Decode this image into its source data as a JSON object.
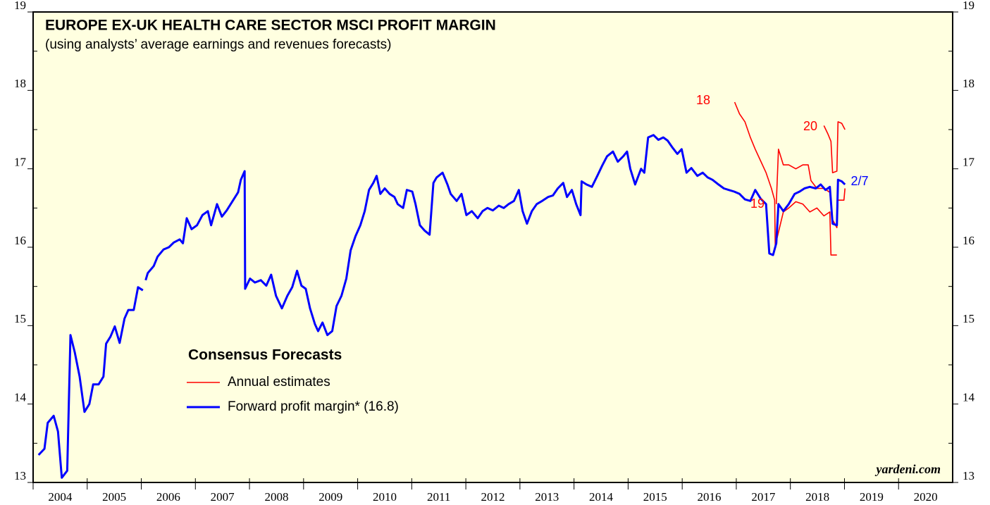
{
  "chart_data": {
    "type": "line",
    "title": "EUROPE EX-UK HEALTH CARE SECTOR MSCI PROFIT MARGIN",
    "subtitle": "(using analysts’ average earnings and revenues forecasts)",
    "legend_title": "Consensus Forecasts",
    "source": "yardeni.com",
    "annotations": [
      "18",
      "19",
      "20",
      "2/7"
    ],
    "xlim": [
      2004,
      2021
    ],
    "xticks": [
      2004,
      2005,
      2006,
      2007,
      2008,
      2009,
      2010,
      2011,
      2012,
      2013,
      2014,
      2015,
      2016,
      2017,
      2018,
      2019,
      2020
    ],
    "ylim": [
      13,
      19
    ],
    "yticks": [
      13,
      14,
      15,
      16,
      17,
      18,
      19
    ],
    "series": [
      {
        "name": "Forward profit margin* (16.8)",
        "color": "#0000ff",
        "x": [
          2004.1,
          2004.21,
          2004.27,
          2004.38,
          2004.46,
          2004.53,
          2004.63,
          2004.69,
          2004.77,
          2004.86,
          2004.95,
          2005.04,
          2005.11,
          2005.21,
          2005.3,
          2005.35,
          2005.43,
          2005.51,
          2005.6,
          2005.69,
          2005.76,
          2005.86,
          2005.94,
          2006.03,
          2006.05,
          2006.08,
          2006.12,
          2006.23,
          2006.3,
          2006.41,
          2006.51,
          2006.6,
          2006.71,
          2006.77,
          2006.84,
          2006.93,
          2007.03,
          2007.13,
          2007.23,
          2007.29,
          2007.4,
          2007.49,
          2007.58,
          2007.68,
          2007.79,
          2007.84,
          2007.91,
          2007.92,
          2008.01,
          2008.1,
          2008.21,
          2008.31,
          2008.4,
          2008.49,
          2008.6,
          2008.7,
          2008.79,
          2008.88,
          2008.96,
          2009.04,
          2009.12,
          2009.21,
          2009.27,
          2009.35,
          2009.44,
          2009.53,
          2009.61,
          2009.7,
          2009.79,
          2009.87,
          2009.96,
          2010.05,
          2010.13,
          2010.21,
          2010.29,
          2010.35,
          2010.42,
          2010.5,
          2010.59,
          2010.68,
          2010.74,
          2010.84,
          2010.91,
          2011.01,
          2011.07,
          2011.15,
          2011.24,
          2011.33,
          2011.4,
          2011.46,
          2011.57,
          2011.66,
          2011.72,
          2011.83,
          2011.92,
          2012.01,
          2012.11,
          2012.22,
          2012.31,
          2012.4,
          2012.5,
          2012.61,
          2012.7,
          2012.79,
          2012.89,
          2012.98,
          2013.05,
          2013.13,
          2013.22,
          2013.31,
          2013.41,
          2013.52,
          2013.61,
          2013.7,
          2013.8,
          2013.87,
          2013.96,
          2014.04,
          2014.12,
          2014.14,
          2014.23,
          2014.33,
          2014.43,
          2014.52,
          2014.61,
          2014.72,
          2014.81,
          2014.91,
          2014.98,
          2015.04,
          2015.13,
          2015.24,
          2015.3,
          2015.37,
          2015.47,
          2015.56,
          2015.65,
          2015.73,
          2015.82,
          2015.91,
          2015.99,
          2016.08,
          2016.17,
          2016.28,
          2016.38,
          2016.47,
          2016.56,
          2016.67,
          2016.77,
          2016.86,
          2016.96,
          2017.06,
          2017.16,
          2017.26,
          2017.35,
          2017.45,
          2017.55,
          2017.61,
          2017.68,
          2017.74,
          2017.78,
          2017.87,
          2017.97,
          2018.08,
          2018.17,
          2018.26,
          2018.36,
          2018.47,
          2018.56,
          2018.65,
          2018.73,
          2018.78,
          2018.86,
          2018.88,
          2018.95,
          2019.01
        ],
        "values": [
          13.35,
          13.43,
          13.76,
          13.85,
          13.65,
          13.06,
          13.15,
          14.88,
          14.66,
          14.35,
          13.9,
          14.0,
          14.25,
          14.25,
          14.35,
          14.77,
          14.86,
          14.99,
          14.78,
          15.09,
          15.2,
          15.2,
          15.49,
          15.45,
          null,
          15.58,
          15.67,
          15.76,
          15.88,
          15.97,
          16.0,
          16.06,
          16.1,
          16.05,
          16.37,
          16.23,
          16.28,
          16.41,
          16.46,
          16.28,
          16.55,
          16.39,
          16.47,
          16.58,
          16.7,
          16.86,
          16.97,
          15.47,
          15.6,
          15.55,
          15.58,
          15.51,
          15.65,
          15.38,
          15.22,
          15.38,
          15.49,
          15.7,
          15.51,
          15.47,
          15.22,
          15.02,
          14.93,
          15.04,
          14.88,
          14.93,
          15.25,
          15.38,
          15.6,
          15.96,
          16.14,
          16.28,
          16.46,
          16.73,
          16.82,
          16.91,
          16.68,
          16.75,
          16.68,
          16.64,
          16.55,
          16.5,
          16.73,
          16.71,
          16.55,
          16.28,
          16.21,
          16.16,
          16.82,
          16.89,
          16.95,
          16.8,
          16.68,
          16.59,
          16.68,
          16.41,
          16.46,
          16.37,
          16.46,
          16.5,
          16.47,
          16.53,
          16.5,
          16.55,
          16.59,
          16.73,
          16.46,
          16.3,
          16.46,
          16.55,
          16.59,
          16.64,
          16.66,
          16.75,
          16.82,
          16.64,
          16.73,
          16.55,
          16.41,
          16.84,
          16.8,
          16.77,
          16.91,
          17.04,
          17.16,
          17.22,
          17.09,
          17.16,
          17.22,
          17.0,
          16.8,
          17.0,
          16.95,
          17.4,
          17.43,
          17.37,
          17.4,
          17.36,
          17.27,
          17.19,
          17.25,
          16.95,
          17.01,
          16.91,
          16.95,
          16.89,
          16.86,
          16.8,
          16.75,
          16.73,
          16.71,
          16.68,
          16.61,
          16.59,
          16.73,
          16.62,
          16.55,
          15.92,
          15.9,
          16.05,
          16.55,
          16.46,
          16.55,
          16.68,
          16.71,
          16.75,
          16.77,
          16.75,
          16.8,
          16.73,
          16.77,
          16.3,
          16.28,
          16.86,
          16.84,
          16.8
        ]
      },
      {
        "name": "Annual estimates",
        "color": "#ff0000",
        "x": [
          2016.97,
          2017.06,
          2017.16,
          2017.26,
          2017.35,
          2017.45,
          2017.55,
          2017.65,
          2017.71,
          2017.72,
          2017.87,
          2017.97,
          2018.1,
          2018.23,
          2018.36,
          2018.49,
          2018.62,
          2018.73,
          2018.75,
          2018.86,
          2018.87,
          2017.74,
          2017.78,
          2017.87,
          2017.97,
          2018.1,
          2018.23,
          2018.33,
          2018.38,
          2018.49,
          2018.62,
          2018.73,
          2018.78,
          2018.86,
          2018.88,
          2018.99,
          2019.01,
          2019.02,
          2018.62,
          2018.69,
          2018.75,
          2018.78,
          2018.86,
          2018.88,
          2018.95,
          2019.01
        ],
        "values": [
          17.85,
          17.7,
          17.6,
          17.4,
          17.25,
          17.1,
          16.95,
          16.75,
          16.6,
          16.02,
          16.45,
          16.5,
          16.58,
          16.55,
          16.45,
          16.5,
          16.4,
          16.45,
          15.9,
          15.9,
          null,
          16.55,
          17.25,
          17.05,
          17.05,
          17.0,
          17.05,
          17.05,
          16.85,
          16.75,
          16.75,
          16.7,
          16.35,
          16.25,
          16.6,
          16.6,
          16.75,
          null,
          17.55,
          17.45,
          17.35,
          16.95,
          16.97,
          17.6,
          17.58,
          17.5
        ]
      }
    ]
  }
}
